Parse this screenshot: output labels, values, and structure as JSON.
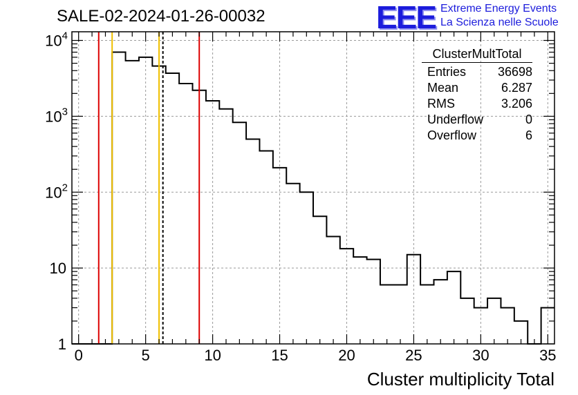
{
  "title": "SALE-02-2024-01-26-00032",
  "logo": {
    "text": "EEE",
    "line1": "Extreme Energy Events",
    "line2": "La Scienza nelle Scuole",
    "color": "#1c1cdc"
  },
  "stats": {
    "name": "ClusterMultTotal",
    "rows": [
      {
        "label": "Entries",
        "value": "36698"
      },
      {
        "label": "Mean",
        "value": "6.287"
      },
      {
        "label": "RMS",
        "value": "3.206"
      },
      {
        "label": "Underflow",
        "value": "0"
      },
      {
        "label": "Overflow",
        "value": "6"
      }
    ]
  },
  "chart_data": {
    "type": "bar",
    "histogram": true,
    "xlabel": "Cluster multiplicity Total",
    "ylabel": "",
    "xlim": [
      -0.5,
      35.5
    ],
    "ylim": [
      1,
      13000
    ],
    "yscale": "log",
    "grid": true,
    "bin_width": 1,
    "bin_edges_start": -0.5,
    "values": [
      0,
      0,
      0,
      7000,
      5400,
      6000,
      4600,
      3700,
      2700,
      2200,
      1600,
      1250,
      830,
      500,
      350,
      210,
      130,
      100,
      48,
      26,
      18,
      14,
      13,
      6,
      6,
      15,
      6,
      7,
      9,
      4,
      3,
      4,
      3,
      2,
      1,
      3
    ],
    "x_ticks": [
      0,
      5,
      10,
      15,
      20,
      25,
      30,
      35
    ],
    "y_ticks": [
      {
        "value": 10000,
        "base": "10",
        "exp": "4"
      },
      {
        "value": 1000,
        "base": "10",
        "exp": "3"
      },
      {
        "value": 100,
        "base": "10",
        "exp": "2"
      },
      {
        "value": 10,
        "base": "10",
        "exp": ""
      },
      {
        "value": 1,
        "base": "1",
        "exp": ""
      }
    ],
    "vertical_lines": [
      {
        "x": 1.5,
        "color": "#dd0000",
        "style": "solid"
      },
      {
        "x": 2.5,
        "color": "#f0c000",
        "style": "solid"
      },
      {
        "x": 6.0,
        "color": "#f0c000",
        "style": "solid"
      },
      {
        "x": 6.29,
        "color": "#000000",
        "style": "dashed"
      },
      {
        "x": 9.0,
        "color": "#dd0000",
        "style": "solid"
      }
    ],
    "line_color": "#000000"
  }
}
